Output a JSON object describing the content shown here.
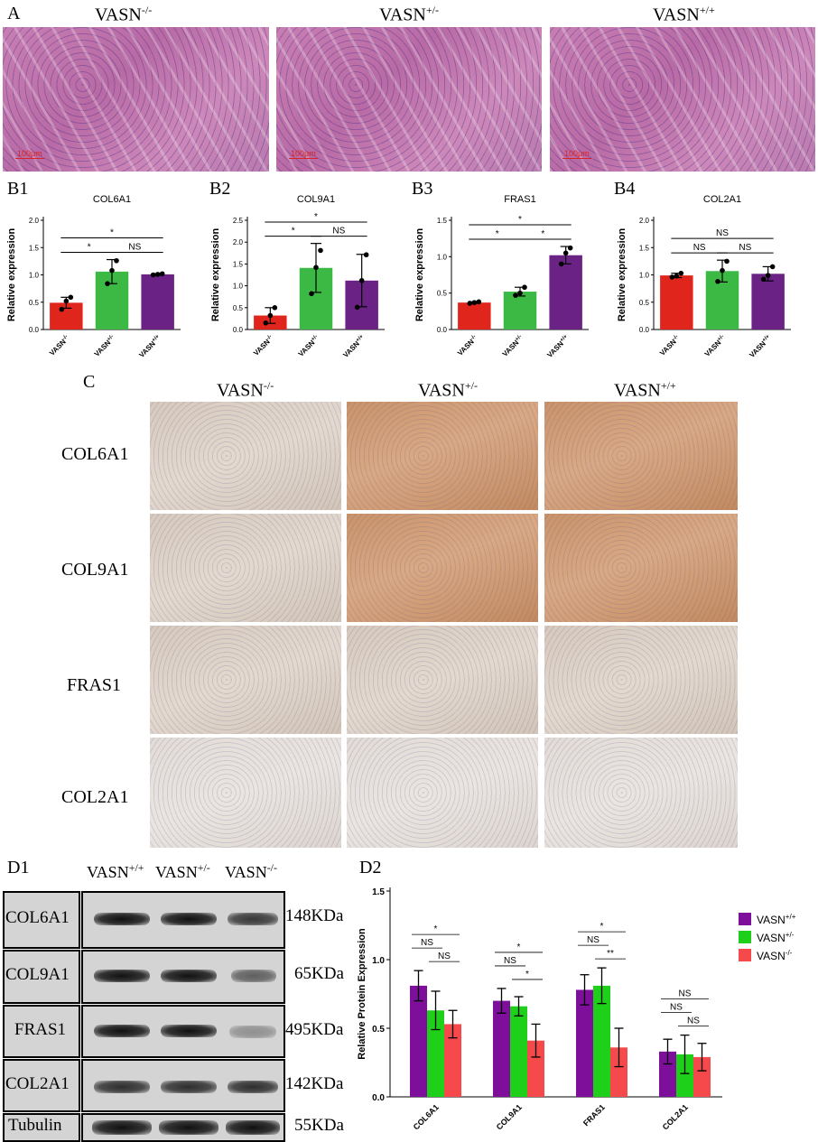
{
  "panelA": {
    "letter": "A",
    "genotypes": [
      {
        "base": "VASN",
        "sup": "-/-"
      },
      {
        "base": "VASN",
        "sup": "+/-"
      },
      {
        "base": "VASN",
        "sup": "+/+"
      }
    ],
    "scalebar": "100μm",
    "colors": {
      "stain": "#c77fb2",
      "scale": "#d22222"
    }
  },
  "panelB": {
    "letters": [
      "B1",
      "B2",
      "B3",
      "B4"
    ],
    "ylabel": "Relative expression",
    "categories": [
      "VASN-/-",
      "VASN+/-",
      "VASN+/+"
    ],
    "category_parts": [
      {
        "base": "VASN",
        "sup": "-/-"
      },
      {
        "base": "VASN",
        "sup": "+/-"
      },
      {
        "base": "VASN",
        "sup": "+/+"
      }
    ],
    "colors": [
      "#e0261c",
      "#3cb944",
      "#6a2385"
    ]
  },
  "panelC": {
    "letter": "C",
    "genotypes": [
      {
        "base": "VASN",
        "sup": "-/-"
      },
      {
        "base": "VASN",
        "sup": "+/-"
      },
      {
        "base": "VASN",
        "sup": "+/+"
      }
    ],
    "rows": [
      "COL6A1",
      "COL9A1",
      "FRAS1",
      "COL2A1"
    ]
  },
  "panelD1": {
    "letter": "D1",
    "genotypes": [
      {
        "base": "VASN",
        "sup": "+/+"
      },
      {
        "base": "VASN",
        "sup": "+/-"
      },
      {
        "base": "VASN",
        "sup": "-/-"
      }
    ],
    "blots": [
      {
        "name": "COL6A1",
        "kda": "148KDa"
      },
      {
        "name": "COL9A1",
        "kda": "65KDa"
      },
      {
        "name": "FRAS1",
        "kda": "495KDa"
      },
      {
        "name": "COL2A1",
        "kda": "142KDa"
      },
      {
        "name": "Tubulin",
        "kda": "55KDa"
      }
    ]
  },
  "panelD2": {
    "letter": "D2"
  },
  "chart_data": [
    {
      "type": "bar",
      "title": "COL6A1",
      "ylabel": "Relative expression",
      "categories": [
        "VASN-/-",
        "VASN+/-",
        "VASN+/+"
      ],
      "values": [
        0.49,
        1.06,
        1.01
      ],
      "errors": [
        0.1,
        0.22,
        0.01
      ],
      "points": [
        [
          0.37,
          0.52,
          0.59
        ],
        [
          0.84,
          1.08,
          1.26
        ],
        [
          1.0,
          1.01,
          1.02
        ]
      ],
      "ylim": [
        0,
        2.0
      ],
      "yticks": [
        0.0,
        0.5,
        1.0,
        1.5,
        2.0
      ],
      "significance": [
        {
          "from": 0,
          "to": 1,
          "label": "*"
        },
        {
          "from": 1,
          "to": 2,
          "label": "NS"
        },
        {
          "from": 0,
          "to": 2,
          "label": "*"
        }
      ]
    },
    {
      "type": "bar",
      "title": "COL9A1",
      "ylabel": "Relative expression",
      "categories": [
        "VASN-/-",
        "VASN+/-",
        "VASN+/+"
      ],
      "values": [
        0.32,
        1.41,
        1.12
      ],
      "errors": [
        0.18,
        0.56,
        0.6
      ],
      "points": [
        [
          0.15,
          0.32,
          0.5
        ],
        [
          0.82,
          1.42,
          1.81
        ],
        [
          0.51,
          1.12,
          1.71
        ]
      ],
      "ylim": [
        0,
        2.5
      ],
      "yticks": [
        0.0,
        0.5,
        1.0,
        1.5,
        2.0,
        2.5
      ],
      "significance": [
        {
          "from": 0,
          "to": 1,
          "label": "*"
        },
        {
          "from": 1,
          "to": 2,
          "label": "NS"
        },
        {
          "from": 0,
          "to": 2,
          "label": "*"
        }
      ]
    },
    {
      "type": "bar",
      "title": "FRAS1",
      "ylabel": "Relative expression",
      "categories": [
        "VASN-/-",
        "VASN+/-",
        "VASN+/+"
      ],
      "values": [
        0.37,
        0.52,
        1.02
      ],
      "errors": [
        0.01,
        0.06,
        0.12
      ],
      "points": [
        [
          0.36,
          0.37,
          0.38
        ],
        [
          0.47,
          0.5,
          0.58
        ],
        [
          0.9,
          1.05,
          1.12
        ]
      ],
      "ylim": [
        0,
        1.5
      ],
      "yticks": [
        0.0,
        0.5,
        1.0,
        1.5
      ],
      "significance": [
        {
          "from": 0,
          "to": 1,
          "label": "*"
        },
        {
          "from": 1,
          "to": 2,
          "label": "*"
        },
        {
          "from": 0,
          "to": 2,
          "label": "*"
        }
      ]
    },
    {
      "type": "bar",
      "title": "COL2A1",
      "ylabel": "Relative expression",
      "categories": [
        "VASN-/-",
        "VASN+/-",
        "VASN+/+"
      ],
      "values": [
        0.99,
        1.07,
        1.02
      ],
      "errors": [
        0.04,
        0.2,
        0.13
      ],
      "points": [
        [
          0.96,
          0.98,
          1.03
        ],
        [
          0.88,
          1.08,
          1.25
        ],
        [
          0.92,
          0.99,
          1.15
        ]
      ],
      "ylim": [
        0,
        2.0
      ],
      "yticks": [
        0.0,
        0.5,
        1.0,
        1.5,
        2.0
      ],
      "significance": [
        {
          "from": 0,
          "to": 1,
          "label": "NS"
        },
        {
          "from": 1,
          "to": 2,
          "label": "NS"
        },
        {
          "from": 0,
          "to": 2,
          "label": "NS"
        }
      ]
    },
    {
      "type": "bar",
      "ylabel": "Relative Protein Expression",
      "categories": [
        "COL6A1",
        "COL9A1",
        "FRAS1",
        "COL2A1"
      ],
      "ylim": [
        0,
        1.5
      ],
      "yticks": [
        0.0,
        0.5,
        1.0,
        1.5
      ],
      "legend_position": "right",
      "series": [
        {
          "name": "VASN+/+",
          "name_parts": {
            "base": "VASN",
            "sup": "+/+"
          },
          "color": "#7d0f9b",
          "values": [
            0.81,
            0.7,
            0.78,
            0.33
          ],
          "errors": [
            0.11,
            0.09,
            0.11,
            0.09
          ]
        },
        {
          "name": "VASN+/-",
          "name_parts": {
            "base": "VASN",
            "sup": "+/-"
          },
          "color": "#1fd01a",
          "values": [
            0.63,
            0.66,
            0.81,
            0.31
          ],
          "errors": [
            0.14,
            0.07,
            0.13,
            0.14
          ]
        },
        {
          "name": "VASN-/-",
          "name_parts": {
            "base": "VASN",
            "sup": "-/-"
          },
          "color": "#f5494b",
          "values": [
            0.53,
            0.41,
            0.36,
            0.29
          ],
          "errors": [
            0.1,
            0.12,
            0.14,
            0.1
          ]
        }
      ],
      "significance": [
        {
          "group": 0,
          "lines": [
            {
              "from": 1,
              "to": 2,
              "label": "NS"
            },
            {
              "from": 0,
              "to": 1,
              "label": "NS"
            },
            {
              "from": 0,
              "to": 2,
              "label": "*"
            }
          ]
        },
        {
          "group": 1,
          "lines": [
            {
              "from": 1,
              "to": 2,
              "label": "*"
            },
            {
              "from": 0,
              "to": 1,
              "label": "NS"
            },
            {
              "from": 0,
              "to": 2,
              "label": "*"
            }
          ]
        },
        {
          "group": 2,
          "lines": [
            {
              "from": 1,
              "to": 2,
              "label": "**"
            },
            {
              "from": 0,
              "to": 1,
              "label": "NS"
            },
            {
              "from": 0,
              "to": 2,
              "label": "*"
            }
          ]
        },
        {
          "group": 3,
          "lines": [
            {
              "from": 1,
              "to": 2,
              "label": "NS"
            },
            {
              "from": 0,
              "to": 1,
              "label": "NS"
            },
            {
              "from": 0,
              "to": 2,
              "label": "NS"
            }
          ]
        }
      ]
    }
  ]
}
